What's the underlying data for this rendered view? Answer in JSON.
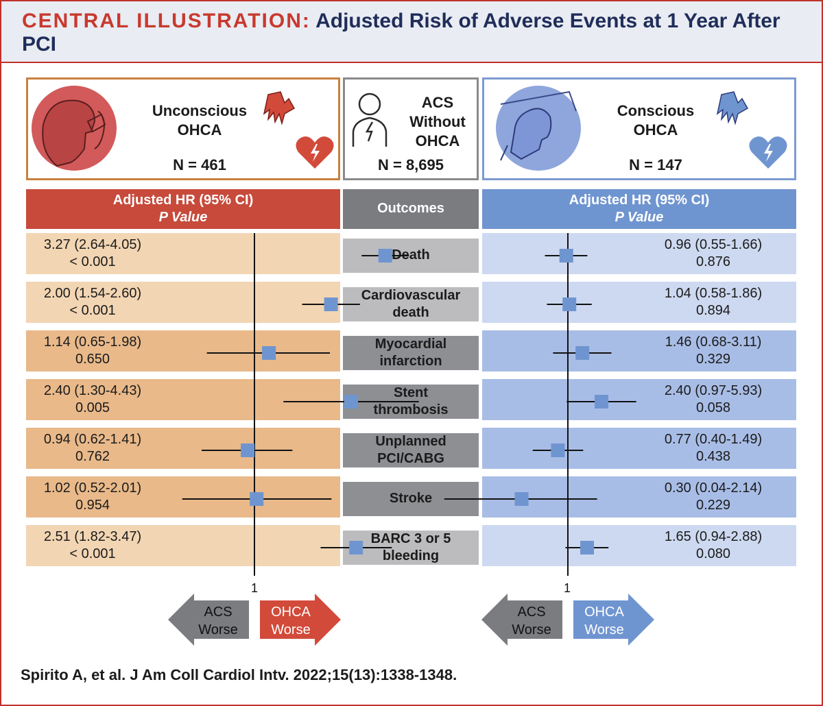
{
  "header": {
    "lead": "CENTRAL ILLUSTRATION:",
    "title": "Adjusted Risk of Adverse Events at 1 Year After PCI"
  },
  "groups": {
    "unconscious": {
      "name_line1": "Unconscious",
      "name_line2": "OHCA",
      "n": "N = 461",
      "color": "#c8803e"
    },
    "acs": {
      "name_line1": "ACS",
      "name_line2": "Without",
      "name_line3": "OHCA",
      "n": "N = 8,695",
      "color": "#8a8a8c"
    },
    "conscious": {
      "name_line1": "Conscious",
      "name_line2": "OHCA",
      "n": "N = 147",
      "color": "#7b9bd0"
    }
  },
  "columns": {
    "left_line1": "Adjusted HR (95% CI)",
    "left_line2": "P Value",
    "middle": "Outcomes",
    "right_line1": "Adjusted HR (95% CI)",
    "right_line2": "P Value"
  },
  "chart_data": [
    {
      "type": "scatter",
      "name": "Unconscious OHCA vs ACS without OHCA",
      "reference_line": 1,
      "categories": [
        "Death",
        "Cardiovascular death",
        "Myocardial infarction",
        "Stent thrombosis",
        "Unplanned PCI/CABG",
        "Stroke",
        "BARC 3 or 5 bleeding"
      ],
      "rows": [
        {
          "hr": 3.27,
          "lo": 2.64,
          "hi": 4.05,
          "text": "3.27 (2.64-4.05)",
          "p": "< 0.001"
        },
        {
          "hr": 2.0,
          "lo": 1.54,
          "hi": 2.6,
          "text": "2.00 (1.54-2.60)",
          "p": "< 0.001"
        },
        {
          "hr": 1.14,
          "lo": 0.65,
          "hi": 1.98,
          "text": "1.14 (0.65-1.98)",
          "p": "0.650"
        },
        {
          "hr": 2.4,
          "lo": 1.3,
          "hi": 4.43,
          "text": "2.40 (1.30-4.43)",
          "p": "0.005"
        },
        {
          "hr": 0.94,
          "lo": 0.62,
          "hi": 1.41,
          "text": "0.94 (0.62-1.41)",
          "p": "0.762"
        },
        {
          "hr": 1.02,
          "lo": 0.52,
          "hi": 2.01,
          "text": "1.02 (0.52-2.01)",
          "p": "0.954"
        },
        {
          "hr": 2.51,
          "lo": 1.82,
          "hi": 3.47,
          "text": "2.51 (1.82-3.47)",
          "p": "< 0.001"
        }
      ],
      "xlabel": "1",
      "arrow_left": [
        "ACS",
        "Worse"
      ],
      "arrow_right": [
        "OHCA",
        "Worse"
      ]
    },
    {
      "type": "scatter",
      "name": "Conscious OHCA vs ACS without OHCA",
      "reference_line": 1,
      "categories": [
        "Death",
        "Cardiovascular death",
        "Myocardial infarction",
        "Stent thrombosis",
        "Unplanned PCI/CABG",
        "Stroke",
        "BARC 3 or 5 bleeding"
      ],
      "rows": [
        {
          "hr": 0.96,
          "lo": 0.55,
          "hi": 1.66,
          "text": "0.96 (0.55-1.66)",
          "p": "0.876"
        },
        {
          "hr": 1.04,
          "lo": 0.58,
          "hi": 1.86,
          "text": "1.04 (0.58-1.86)",
          "p": "0.894"
        },
        {
          "hr": 1.46,
          "lo": 0.68,
          "hi": 3.11,
          "text": "1.46 (0.68-3.11)",
          "p": "0.329"
        },
        {
          "hr": 2.4,
          "lo": 0.97,
          "hi": 5.93,
          "text": "2.40 (0.97-5.93)",
          "p": "0.058"
        },
        {
          "hr": 0.77,
          "lo": 0.4,
          "hi": 1.49,
          "text": "0.77 (0.40-1.49)",
          "p": "0.438"
        },
        {
          "hr": 0.3,
          "lo": 0.04,
          "hi": 2.14,
          "text": "0.30 (0.04-2.14)",
          "p": "0.229"
        },
        {
          "hr": 1.65,
          "lo": 0.94,
          "hi": 2.88,
          "text": "1.65 (0.94-2.88)",
          "p": "0.080"
        }
      ],
      "xlabel": "1",
      "arrow_left": [
        "ACS",
        "Worse"
      ],
      "arrow_right": [
        "OHCA",
        "Worse"
      ]
    }
  ],
  "outcomes": [
    [
      "Death"
    ],
    [
      "Cardiovascular",
      "death"
    ],
    [
      "Myocardial",
      "infarction"
    ],
    [
      "Stent",
      "thrombosis"
    ],
    [
      "Unplanned",
      "PCI/CABG"
    ],
    [
      "Stroke"
    ],
    [
      "BARC 3 or 5",
      "bleeding"
    ]
  ],
  "colors": {
    "brand_red": "#c8392e",
    "navy": "#1f2d5a",
    "left_light": "#f2d5b3",
    "left_dark": "#e9b98a",
    "right_light": "#cdd9f0",
    "right_dark": "#a8bde6",
    "mid_light": "#bcbcbe",
    "mid_dark": "#8e8f93",
    "marker": "#6f95d0",
    "arrow_gray": "#7b7c80",
    "arrow_red": "#d24a3a",
    "arrow_blue": "#6f95d0"
  },
  "citation": "Spirito A, et al. J Am Coll Cardiol Intv. 2022;15(13):1338-1348."
}
